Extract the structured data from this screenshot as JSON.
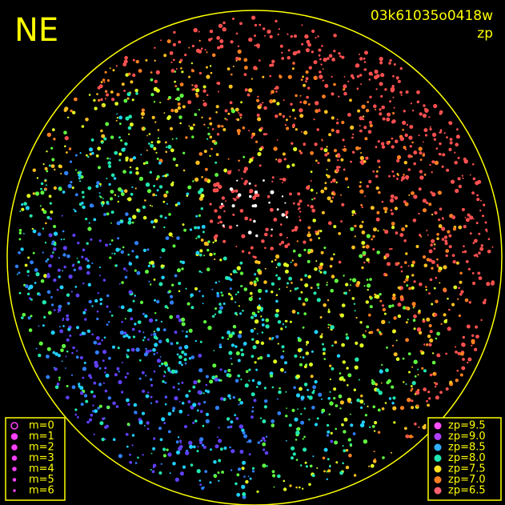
{
  "corner_label": "NE",
  "frame_id": "03k61035o0418w",
  "color_key": "zp",
  "magnitude_legend": [
    "m=0",
    "m=1",
    "m=2",
    "m=3",
    "m=4",
    "m=5",
    "m=6"
  ],
  "zp_legend": [
    {
      "label": "zp=9.5",
      "color": "#ff50ff"
    },
    {
      "label": "zp=9.0",
      "color": "#b040ff"
    },
    {
      "label": "zp=8.5",
      "color": "#30b0ff"
    },
    {
      "label": "zp=8.0",
      "color": "#20e8b0"
    },
    {
      "label": "zp=7.5",
      "color": "#ffe020"
    },
    {
      "label": "zp=7.0",
      "color": "#ff8020"
    },
    {
      "label": "zp=6.5",
      "color": "#ff6070"
    }
  ]
}
